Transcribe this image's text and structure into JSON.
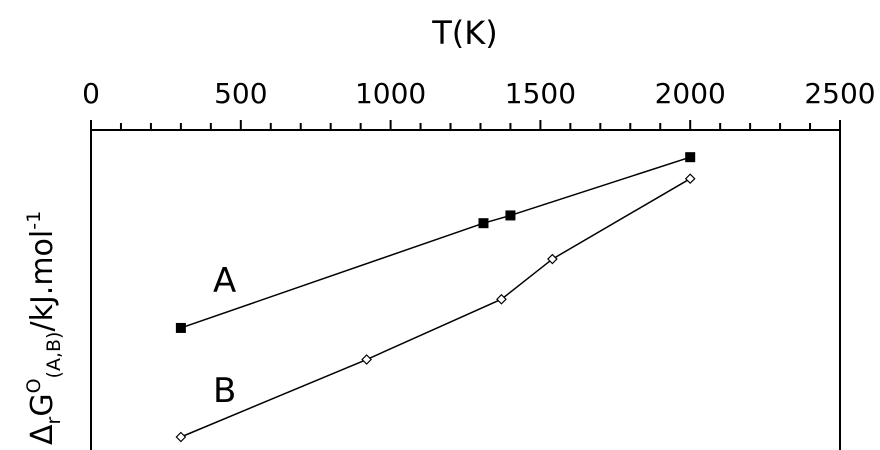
{
  "chart_data": {
    "type": "line",
    "title": "",
    "xlabel": "T(K)",
    "ylabel": {
      "symbol": "Δ",
      "sub_r": "r",
      "main": "G",
      "sup": "O",
      "sub_ab": "(A,B)",
      "unit": "/kJ.mol",
      "unit_sup": "-1"
    },
    "xlim": [
      0,
      2500
    ],
    "x_ticks": [
      0,
      500,
      1000,
      1500,
      2000,
      2500
    ],
    "x_tick_labels": [
      "0",
      "500",
      "1000",
      "1500",
      "2000",
      "2500"
    ],
    "x_minor_step": 100,
    "xaxis_position": "top",
    "grid": false,
    "ylim": [
      0,
      100
    ],
    "series": [
      {
        "name": "A",
        "marker": "filled-square",
        "color": "#000000",
        "x": [
          300,
          1310,
          1400,
          2000
        ],
        "y": [
          38,
          74.5,
          77.2,
          97.5
        ]
      },
      {
        "name": "B",
        "marker": "open-diamond",
        "color": "#000000",
        "x": [
          300,
          920,
          1370,
          1540,
          2000
        ],
        "y": [
          0,
          27,
          48,
          62,
          90
        ]
      }
    ]
  }
}
